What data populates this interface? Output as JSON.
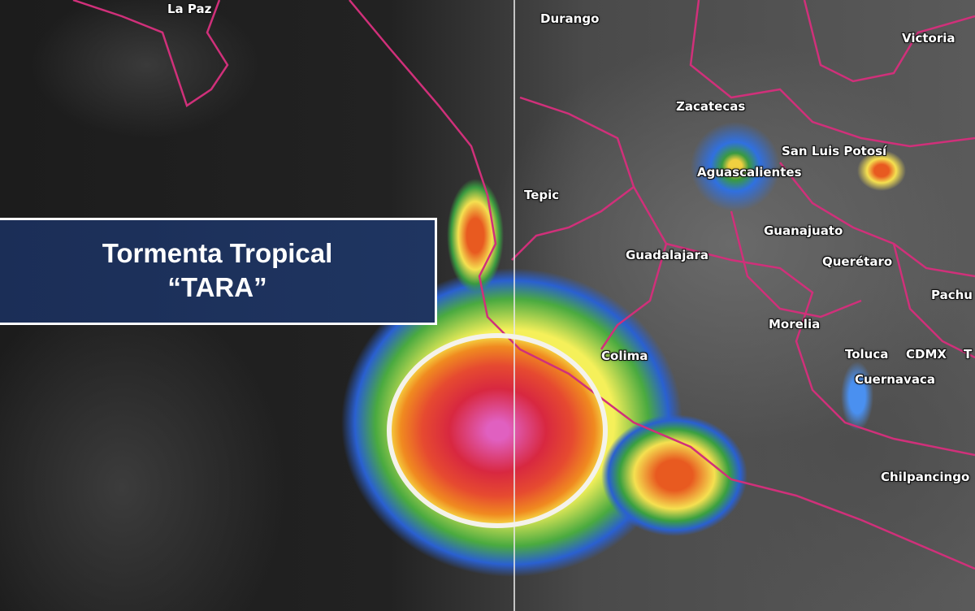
{
  "banner": {
    "line1": "Tormenta Tropical",
    "line2": "“TARA”"
  },
  "cities": [
    "La Paz",
    "Durango",
    "Victoria",
    "Zacatecas",
    "San Luis Potosí",
    "Aguascalientes",
    "Tepic",
    "Guanajuato",
    "Guadalajara",
    "Querétaro",
    "Pachu",
    "Morelia",
    "Colima",
    "Toluca",
    "CDMX",
    "Cuernavaca",
    "Chilpancingo",
    "T"
  ],
  "colors": {
    "borders": "#d0307a",
    "banner": "#1f3561",
    "storm_core": "#e0304a",
    "storm_outer": "#f07a20"
  }
}
